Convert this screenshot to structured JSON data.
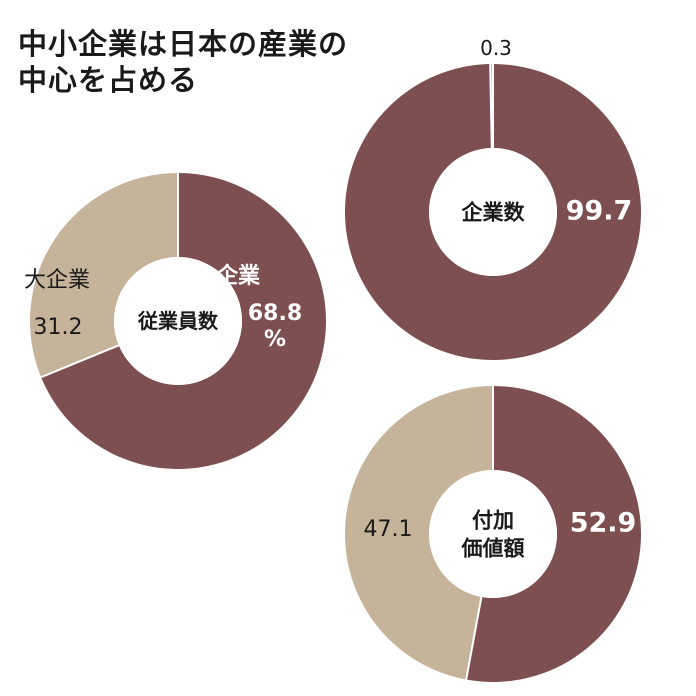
{
  "title": "中小企業は日本の産業の\n中心を占める",
  "colors": {
    "small_business": "#7e4f50",
    "large_business": "#c5b49a",
    "hole": "#ffffff",
    "label_dark": "#1a1a1a",
    "label_light": "#ffffff"
  },
  "chart_data": [
    {
      "type": "pie",
      "center_label": "企業数",
      "series": [
        {
          "name": "中小企業",
          "value": 99.7,
          "label": "99.7",
          "color": "#7e4f50"
        },
        {
          "name": "大企業",
          "value": 0.3,
          "label": "0.3",
          "color": "#c5b49a"
        }
      ]
    },
    {
      "type": "pie",
      "center_label": "従業員数",
      "series": [
        {
          "name": "中小企業",
          "value": 68.8,
          "label": "68.8\n%",
          "legend": "中小企業",
          "color": "#7e4f50"
        },
        {
          "name": "大企業",
          "value": 31.2,
          "label": "31.2",
          "legend": "大企業",
          "color": "#c5b49a"
        }
      ]
    },
    {
      "type": "pie",
      "center_label": "付加\n価値額",
      "series": [
        {
          "name": "中小企業",
          "value": 52.9,
          "label": "52.9",
          "color": "#7e4f50"
        },
        {
          "name": "大企業",
          "value": 47.1,
          "label": "47.1",
          "color": "#c5b49a"
        }
      ]
    }
  ]
}
